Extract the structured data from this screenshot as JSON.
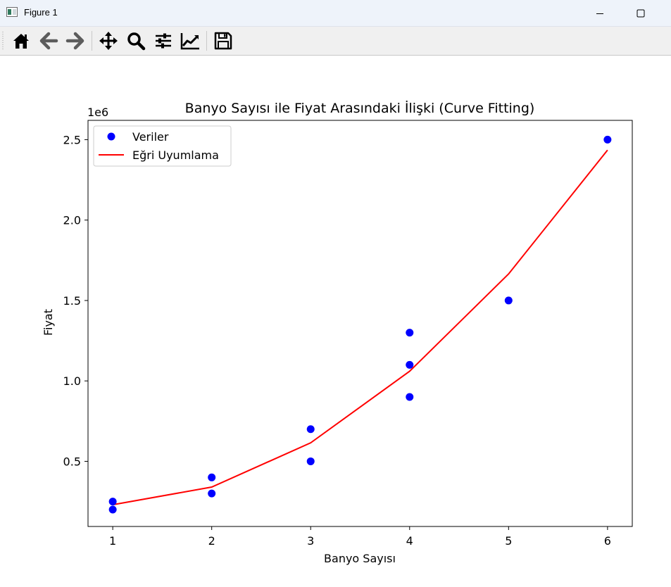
{
  "window": {
    "title": "Figure 1"
  },
  "toolbar": {
    "buttons": [
      {
        "icon": "home-icon"
      },
      {
        "icon": "back-arrow-icon"
      },
      {
        "icon": "forward-arrow-icon"
      },
      {
        "icon": "pan-move-icon"
      },
      {
        "icon": "zoom-magnifier-icon"
      },
      {
        "icon": "configure-subplots-icon"
      },
      {
        "icon": "edit-axis-icon"
      },
      {
        "icon": "save-floppy-icon"
      }
    ]
  },
  "chart_data": {
    "type": "scatter",
    "title": "Banyo Sayısı ile Fiyat Arasındaki İlişki (Curve Fitting)",
    "xlabel": "Banyo Sayısı",
    "ylabel": "Fiyat",
    "offset_label": "1e6",
    "xlim": [
      0.75,
      6.25
    ],
    "ylim": [
      0.095,
      2.62
    ],
    "x_ticks": [
      1,
      2,
      3,
      4,
      5,
      6
    ],
    "x_tick_labels": [
      "1",
      "2",
      "3",
      "4",
      "5",
      "6"
    ],
    "y_ticks": [
      0.5,
      1.0,
      1.5,
      2.0,
      2.5
    ],
    "y_tick_labels": [
      "0.5",
      "1.0",
      "1.5",
      "2.0",
      "2.5"
    ],
    "grid": false,
    "legend_position": "upper-left",
    "series": [
      {
        "name": "Veriler",
        "kind": "scatter",
        "color": "#0000ff",
        "x": [
          1,
          1,
          2,
          2,
          3,
          3,
          4,
          4,
          4,
          5,
          6
        ],
        "y": [
          0.2,
          0.25,
          0.3,
          0.4,
          0.5,
          0.7,
          0.9,
          1.1,
          1.3,
          1.5,
          2.5
        ]
      },
      {
        "name": "Eğri Uyumlama",
        "kind": "line",
        "color": "#ff0000",
        "x": [
          1,
          2,
          3,
          4,
          5,
          6
        ],
        "y": [
          0.23,
          0.34,
          0.615,
          1.06,
          1.665,
          2.435
        ]
      }
    ]
  }
}
